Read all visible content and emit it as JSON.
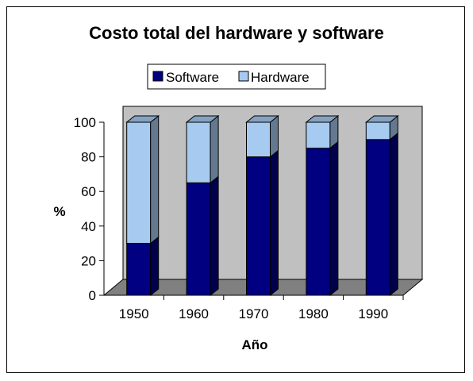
{
  "chart_data": {
    "type": "bar",
    "stacked": true,
    "three_d": true,
    "title": "Costo total del hardware y software",
    "xlabel": "Año",
    "ylabel": "%",
    "categories": [
      "1950",
      "1960",
      "1970",
      "1980",
      "1990"
    ],
    "series": [
      {
        "name": "Software",
        "values": [
          30,
          65,
          80,
          85,
          90
        ],
        "color": "#000080"
      },
      {
        "name": "Hardware",
        "values": [
          70,
          35,
          20,
          15,
          10
        ],
        "color": "#a6caf0"
      }
    ],
    "ylim": [
      0,
      100
    ],
    "yticks": [
      "0",
      "20",
      "40",
      "60",
      "80",
      "100"
    ],
    "legend_position": "top",
    "wall_color": "#c0c0c0",
    "grid": false
  }
}
